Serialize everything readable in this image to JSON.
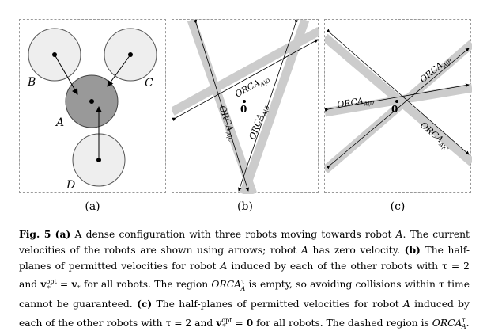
{
  "panels": {
    "a": {
      "sublabel": "(a)",
      "robots": {
        "A": "A",
        "B": "B",
        "C": "C",
        "D": "D"
      }
    },
    "b": {
      "sublabel": "(b)",
      "origin": "0",
      "labels": {
        "bd": "ORCA",
        "bd_sub": "A|D",
        "bc": "ORCA",
        "bc_sub": "A|C",
        "bb": "ORCA",
        "bb_sub": "A|B"
      }
    },
    "c": {
      "sublabel": "(c)",
      "origin": "0",
      "labels": {
        "cb": "ORCA",
        "cb_sub": "A|B",
        "cd": "ORCA",
        "cd_sub": "A|D",
        "cc": "ORCA",
        "cc_sub": "A|C"
      }
    }
  },
  "caption": {
    "fig": "Fig. 5",
    "a_tag": "(a)",
    "a_text": " A dense configuration with three robots moving towards robot ",
    "robotA": "A",
    "a_text2": ". The current velocities of the robots are shown using arrows; robot ",
    "a_text3": " has zero velocity. ",
    "b_tag": "(b)",
    "b_text": " The half-planes of permitted velocities for robot ",
    "b_text2": " induced by each of the other robots with τ = 2 and ",
    "vopt": "v",
    "v_sup": "opt",
    "v_sub": "*",
    "b_text3": " = ",
    "v2": "v",
    "v2_sub": "*",
    "b_text4": " for all robots. The region ",
    "orca": "ORCA",
    "orca_sup": "τ",
    "orca_sub": "A",
    "b_text5": " is empty, so avoiding collisions within τ time cannot be guaranteed. ",
    "c_tag": "(c)",
    "c_text": " The half-planes of permitted velocities for robot ",
    "c_text2": " induced by each of the other robots with τ = 2 and ",
    "c_text3": " = ",
    "zero": "0",
    "c_text4": " for all robots. The dashed region is ",
    "c_text5": "."
  }
}
